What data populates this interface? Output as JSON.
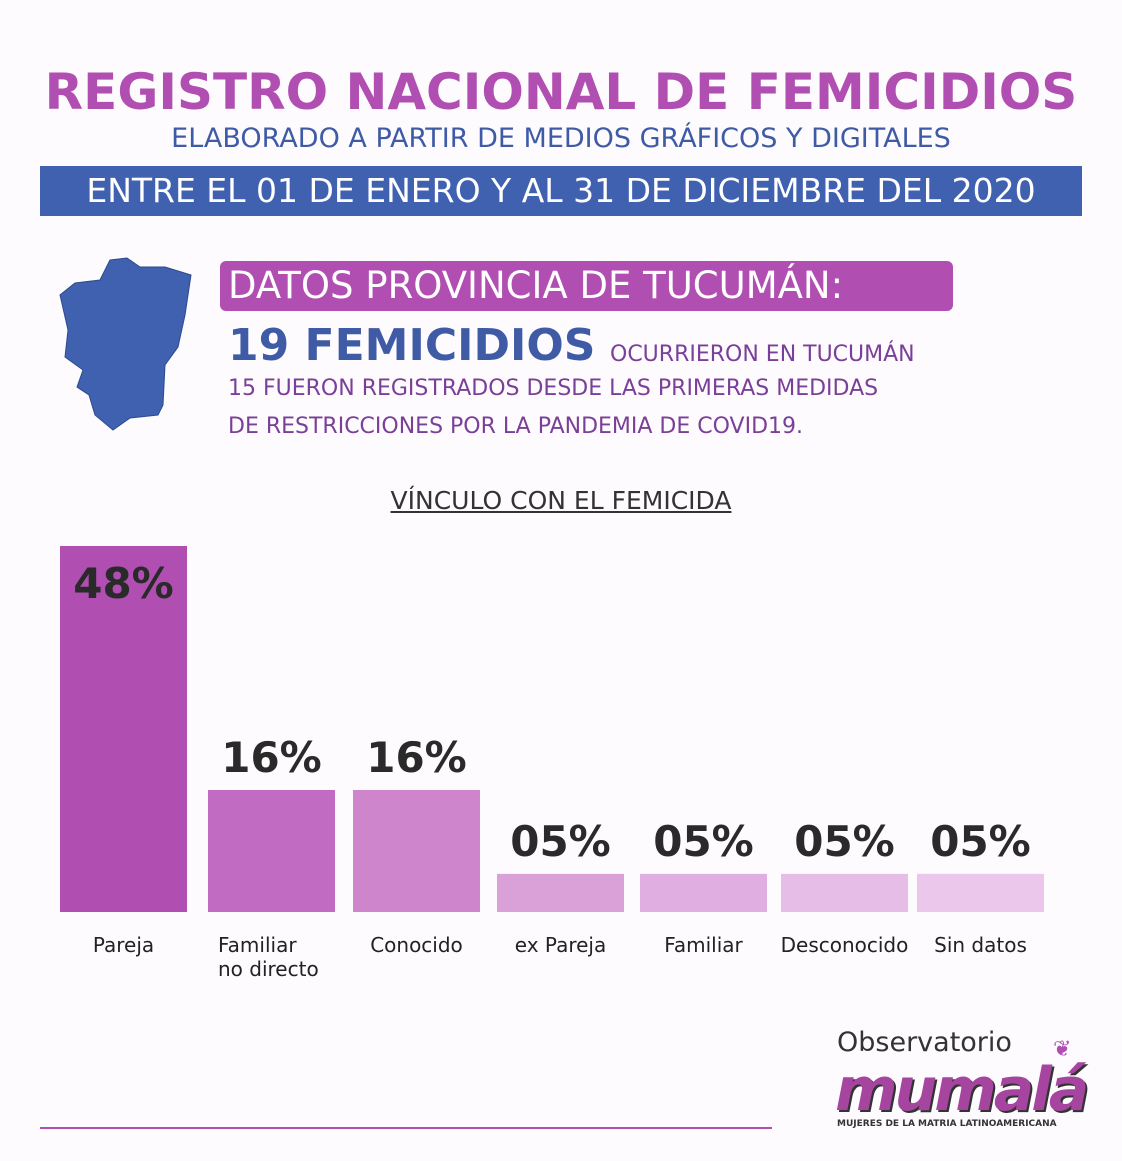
{
  "header": {
    "title": "REGISTRO NACIONAL DE FEMICIDIOS",
    "subtitle": "ELABORADO A PARTIR DE MEDIOS GRÁFICOS Y DIGITALES",
    "period": "ENTRE EL 01 DE ENERO Y AL 31 DE DICIEMBRE DEL 2020"
  },
  "province": {
    "label": "DATOS PROVINCIA DE TUCUMÁN:",
    "count": "19 FEMICIDIOS",
    "count_text": "OCURRIERON EN TUCUMÁN",
    "detail_line1": "15 FUERON REGISTRADOS DESDE LAS PRIMERAS MEDIDAS",
    "detail_line2": "DE RESTRICCIONES POR LA PANDEMIA DE COVID19.",
    "map_color": "#4060b0"
  },
  "chart_data": {
    "type": "bar",
    "title": "VÍNCULO CON EL FEMICIDA",
    "categories": [
      [
        "Pareja"
      ],
      [
        "Familiar",
        "no directo"
      ],
      [
        "Conocido"
      ],
      [
        "ex Pareja"
      ],
      [
        "Familiar"
      ],
      [
        "Desconocido"
      ],
      [
        "Sin datos"
      ]
    ],
    "values": [
      48,
      16,
      16,
      5,
      5,
      5,
      5
    ],
    "value_labels": [
      "48%",
      "16%",
      "16%",
      "05%",
      "05%",
      "05%",
      "05%"
    ],
    "colors": [
      "#b04fb1",
      "#c26bc2",
      "#cf85cc",
      "#daa0d8",
      "#e0aee0",
      "#e6bde6",
      "#ebc7eb"
    ],
    "ylim": [
      0,
      48
    ]
  },
  "logo": {
    "top_text": "Observatorio",
    "brand_text": "mumalá",
    "tagline": "MUJERES DE LA MATRIA LATINOAMERICANA"
  }
}
